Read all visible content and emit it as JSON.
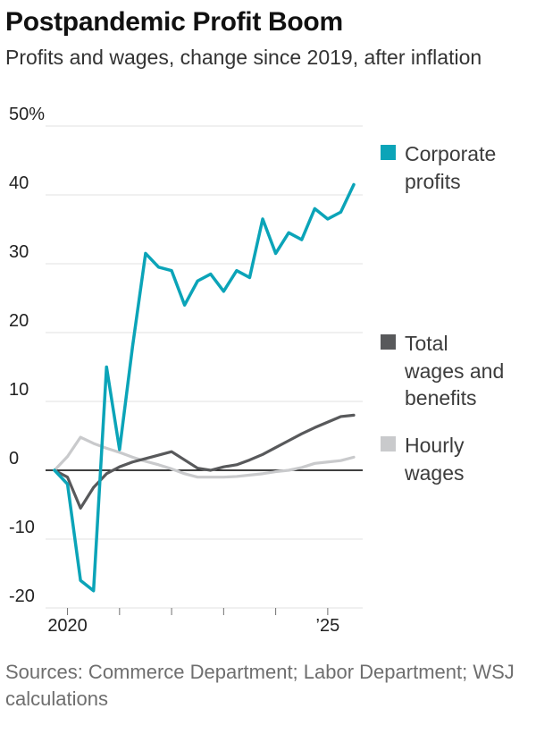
{
  "header": {
    "title": "Postpandemic Profit Boom",
    "subtitle": "Profits and wages, change since 2019, after inflation"
  },
  "footer": {
    "sources": "Sources: Commerce Department; Labor Department; WSJ calculations"
  },
  "chart_data": {
    "type": "line",
    "title": "Postpandemic Profit Boom",
    "subtitle": "Profits and wages, change since 2019, after inflation",
    "x_unit": "quarterly",
    "x_start": "2019 Q4",
    "x_end": "2025 Q3",
    "ylim": [
      -20,
      50
    ],
    "grid": true,
    "zero_line": true,
    "legend_position": "right",
    "y_ticks": [
      50,
      40,
      30,
      20,
      10,
      0,
      -10,
      -20
    ],
    "y_tick_labels": [
      "50%",
      "40",
      "30",
      "20",
      "10",
      "0",
      "-10",
      "-20"
    ],
    "x_year_tick_indices": [
      1,
      5,
      9,
      13,
      17,
      21
    ],
    "x_tick_labels": [
      {
        "index": 1,
        "label": "2020"
      },
      {
        "index": 21,
        "label": "’25"
      }
    ],
    "series": [
      {
        "name": "Corporate profits",
        "color": "#0ba4b8",
        "values": [
          0,
          -2,
          -16,
          -17.5,
          15,
          3,
          18,
          31.5,
          29.5,
          29,
          24,
          27.5,
          28.5,
          26,
          29,
          28,
          36.5,
          31.5,
          34.5,
          33.5,
          38,
          36.5,
          37.5,
          41.5
        ]
      },
      {
        "name": "Total wages and benefits",
        "color": "#58595b",
        "values": [
          0,
          -1,
          -5.5,
          -2.5,
          -0.5,
          0.5,
          1.2,
          1.7,
          2.2,
          2.7,
          1.5,
          0.3,
          0,
          0.5,
          0.8,
          1.5,
          2.3,
          3.3,
          4.3,
          5.3,
          6.2,
          7,
          7.8,
          8
        ]
      },
      {
        "name": "Hourly wages",
        "color": "#c9cacc",
        "values": [
          0,
          2,
          4.8,
          3.9,
          3.2,
          2.6,
          1.9,
          1.3,
          0.8,
          0.2,
          -0.5,
          -1,
          -1,
          -1,
          -0.9,
          -0.7,
          -0.5,
          -0.2,
          0,
          0.4,
          1,
          1.2,
          1.4,
          1.9
        ]
      }
    ]
  }
}
